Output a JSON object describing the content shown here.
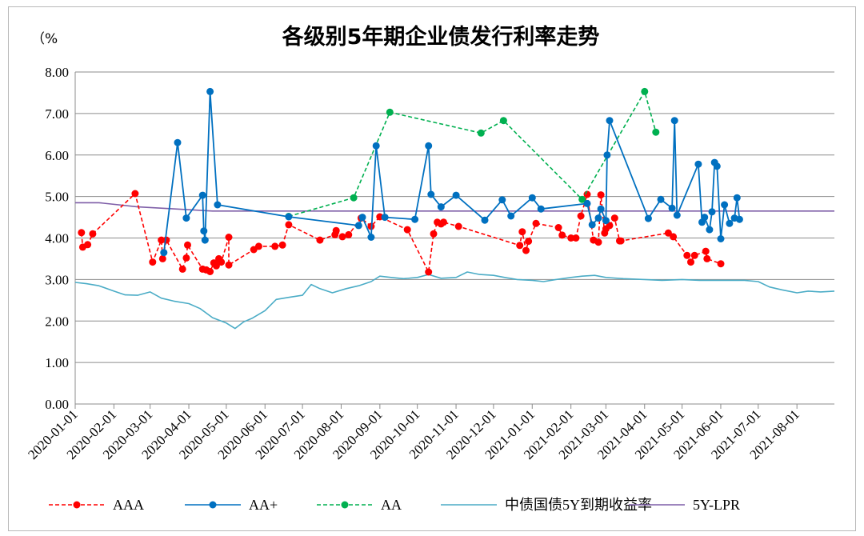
{
  "chart_data": {
    "type": "line",
    "title": "各级别5年期企业债发行利率走势",
    "ylabel": "（%",
    "ylim": [
      0,
      8
    ],
    "yticks": [
      "0.00",
      "1.00",
      "2.00",
      "3.00",
      "4.00",
      "5.00",
      "6.00",
      "7.00",
      "8.00"
    ],
    "xlim": [
      "2020-01-01",
      "2021-08-31"
    ],
    "xticks": [
      "2020-01-01",
      "2020-02-01",
      "2020-03-01",
      "2020-04-01",
      "2020-05-01",
      "2020-06-01",
      "2020-07-01",
      "2020-08-01",
      "2020-09-01",
      "2020-10-01",
      "2020-11-01",
      "2020-12-01",
      "2021-01-01",
      "2021-02-01",
      "2021-03-01",
      "2021-04-01",
      "2021-05-01",
      "2021-06-01",
      "2021-07-01",
      "2021-08-01"
    ],
    "grid": true,
    "legend_position": "bottom",
    "colors": {
      "AAA": "#ff0000",
      "AA+": "#0070c0",
      "AA": "#00b050",
      "cgb": "#4bacc6",
      "lpr": "#7f5fa8"
    },
    "series": [
      {
        "name": "AAA",
        "style": "dashed-markers",
        "points": [
          [
            "2020-01-06",
            4.13
          ],
          [
            "2020-01-07",
            3.78
          ],
          [
            "2020-01-11",
            3.84
          ],
          [
            "2020-01-15",
            4.1
          ],
          [
            "2020-02-18",
            5.07
          ],
          [
            "2020-03-03",
            3.42
          ],
          [
            "2020-03-10",
            3.95
          ],
          [
            "2020-03-11",
            3.5
          ],
          [
            "2020-03-14",
            3.95
          ],
          [
            "2020-03-27",
            3.25
          ],
          [
            "2020-03-30",
            3.52
          ],
          [
            "2020-03-31",
            3.83
          ],
          [
            "2020-04-12",
            3.25
          ],
          [
            "2020-04-15",
            3.23
          ],
          [
            "2020-04-18",
            3.19
          ],
          [
            "2020-04-21",
            3.4
          ],
          [
            "2020-04-23",
            3.33
          ],
          [
            "2020-04-25",
            3.5
          ],
          [
            "2020-04-27",
            3.42
          ],
          [
            "2020-05-03",
            4.02
          ],
          [
            "2020-05-03",
            3.35
          ],
          [
            "2020-05-23",
            3.72
          ],
          [
            "2020-05-27",
            3.8
          ],
          [
            "2020-06-09",
            3.8
          ],
          [
            "2020-06-15",
            3.83
          ],
          [
            "2020-06-20",
            4.32
          ],
          [
            "2020-07-15",
            3.95
          ],
          [
            "2020-07-27",
            4.08
          ],
          [
            "2020-07-28",
            4.18
          ],
          [
            "2020-08-02",
            4.03
          ],
          [
            "2020-08-07",
            4.08
          ],
          [
            "2020-08-17",
            4.48
          ],
          [
            "2020-08-25",
            4.28
          ],
          [
            "2020-09-01",
            4.51
          ],
          [
            "2020-09-23",
            4.2
          ],
          [
            "2020-10-10",
            3.18
          ],
          [
            "2020-10-14",
            4.1
          ],
          [
            "2020-10-17",
            4.38
          ],
          [
            "2020-10-20",
            4.34
          ],
          [
            "2020-10-22",
            4.38
          ],
          [
            "2020-11-03",
            4.28
          ],
          [
            "2020-12-22",
            3.82
          ],
          [
            "2020-12-24",
            4.15
          ],
          [
            "2020-12-27",
            3.7
          ],
          [
            "2020-12-29",
            3.92
          ],
          [
            "2021-01-04",
            4.35
          ],
          [
            "2021-01-22",
            4.25
          ],
          [
            "2021-01-25",
            4.07
          ],
          [
            "2021-02-01",
            4.0
          ],
          [
            "2021-02-05",
            4.0
          ],
          [
            "2021-02-09",
            4.53
          ],
          [
            "2021-02-14",
            5.05
          ],
          [
            "2021-02-19",
            3.95
          ],
          [
            "2021-02-23",
            3.9
          ],
          [
            "2021-02-25",
            5.04
          ],
          [
            "2021-02-28",
            4.12
          ],
          [
            "2021-03-01",
            4.22
          ],
          [
            "2021-03-04",
            4.3
          ],
          [
            "2021-03-08",
            4.48
          ],
          [
            "2021-03-12",
            3.93
          ],
          [
            "2021-03-13",
            3.93
          ],
          [
            "2021-04-20",
            4.12
          ],
          [
            "2021-04-24",
            4.03
          ],
          [
            "2021-05-05",
            3.58
          ],
          [
            "2021-05-08",
            3.42
          ],
          [
            "2021-05-11",
            3.58
          ],
          [
            "2021-05-20",
            3.68
          ],
          [
            "2021-05-21",
            3.5
          ],
          [
            "2021-06-01",
            3.38
          ]
        ]
      },
      {
        "name": "AA+",
        "style": "solid-markers",
        "points": [
          [
            "2020-03-12",
            3.65
          ],
          [
            "2020-03-23",
            6.3
          ],
          [
            "2020-03-30",
            4.48
          ],
          [
            "2020-04-12",
            5.03
          ],
          [
            "2020-04-13",
            4.17
          ],
          [
            "2020-04-14",
            3.95
          ],
          [
            "2020-04-18",
            7.53
          ],
          [
            "2020-04-24",
            4.8
          ],
          [
            "2020-06-20",
            4.51
          ],
          [
            "2020-08-15",
            4.3
          ],
          [
            "2020-08-18",
            4.5
          ],
          [
            "2020-08-25",
            4.02
          ],
          [
            "2020-08-29",
            6.22
          ],
          [
            "2020-09-05",
            4.5
          ],
          [
            "2020-09-29",
            4.45
          ],
          [
            "2020-10-10",
            6.22
          ],
          [
            "2020-10-12",
            5.05
          ],
          [
            "2020-10-20",
            4.75
          ],
          [
            "2020-11-01",
            5.03
          ],
          [
            "2020-11-24",
            4.43
          ],
          [
            "2020-12-08",
            4.92
          ],
          [
            "2020-12-15",
            4.53
          ],
          [
            "2021-01-01",
            4.97
          ],
          [
            "2021-01-08",
            4.7
          ],
          [
            "2021-02-14",
            4.83
          ],
          [
            "2021-02-18",
            4.32
          ],
          [
            "2021-02-23",
            4.48
          ],
          [
            "2021-02-25",
            4.7
          ],
          [
            "2021-03-01",
            4.42
          ],
          [
            "2021-03-02",
            6.0
          ],
          [
            "2021-03-04",
            6.83
          ],
          [
            "2021-04-04",
            4.47
          ],
          [
            "2021-04-14",
            4.93
          ],
          [
            "2021-04-23",
            4.72
          ],
          [
            "2021-04-25",
            6.83
          ],
          [
            "2021-04-27",
            4.55
          ],
          [
            "2021-05-14",
            5.78
          ],
          [
            "2021-05-17",
            4.38
          ],
          [
            "2021-05-19",
            4.5
          ],
          [
            "2021-05-23",
            4.2
          ],
          [
            "2021-05-25",
            4.63
          ],
          [
            "2021-05-27",
            5.82
          ],
          [
            "2021-05-29",
            5.73
          ],
          [
            "2021-06-01",
            3.98
          ],
          [
            "2021-06-04",
            4.8
          ],
          [
            "2021-06-08",
            4.35
          ],
          [
            "2021-06-12",
            4.48
          ],
          [
            "2021-06-14",
            4.97
          ],
          [
            "2021-06-16",
            4.45
          ]
        ]
      },
      {
        "name": "AA",
        "style": "dashed-markers",
        "points": [
          [
            "2020-06-20",
            4.52
          ],
          [
            "2020-08-11",
            4.97
          ],
          [
            "2020-09-09",
            7.03
          ],
          [
            "2020-11-21",
            6.53
          ],
          [
            "2020-12-09",
            6.83
          ],
          [
            "2021-02-10",
            4.93
          ],
          [
            "2021-04-01",
            7.53
          ],
          [
            "2021-04-10",
            6.55
          ]
        ]
      },
      {
        "name": "中债国债5Y到期收益率",
        "style": "solid",
        "points": [
          [
            "2020-01-01",
            2.93
          ],
          [
            "2020-01-10",
            2.9
          ],
          [
            "2020-01-20",
            2.85
          ],
          [
            "2020-02-01",
            2.72
          ],
          [
            "2020-02-10",
            2.63
          ],
          [
            "2020-02-20",
            2.62
          ],
          [
            "2020-03-01",
            2.7
          ],
          [
            "2020-03-10",
            2.55
          ],
          [
            "2020-03-20",
            2.48
          ],
          [
            "2020-04-01",
            2.42
          ],
          [
            "2020-04-10",
            2.3
          ],
          [
            "2020-04-20",
            2.08
          ],
          [
            "2020-05-01",
            1.95
          ],
          [
            "2020-05-08",
            1.82
          ],
          [
            "2020-05-15",
            1.98
          ],
          [
            "2020-05-22",
            2.07
          ],
          [
            "2020-06-01",
            2.25
          ],
          [
            "2020-06-10",
            2.52
          ],
          [
            "2020-06-20",
            2.57
          ],
          [
            "2020-07-01",
            2.62
          ],
          [
            "2020-07-08",
            2.88
          ],
          [
            "2020-07-15",
            2.78
          ],
          [
            "2020-07-25",
            2.68
          ],
          [
            "2020-08-05",
            2.78
          ],
          [
            "2020-08-15",
            2.85
          ],
          [
            "2020-08-25",
            2.95
          ],
          [
            "2020-09-01",
            3.08
          ],
          [
            "2020-09-10",
            3.05
          ],
          [
            "2020-09-20",
            3.02
          ],
          [
            "2020-10-01",
            3.05
          ],
          [
            "2020-10-10",
            3.12
          ],
          [
            "2020-10-20",
            3.03
          ],
          [
            "2020-11-01",
            3.05
          ],
          [
            "2020-11-10",
            3.18
          ],
          [
            "2020-11-20",
            3.12
          ],
          [
            "2020-12-01",
            3.1
          ],
          [
            "2020-12-10",
            3.05
          ],
          [
            "2020-12-20",
            3.0
          ],
          [
            "2021-01-01",
            2.98
          ],
          [
            "2021-01-10",
            2.95
          ],
          [
            "2021-01-20",
            3.0
          ],
          [
            "2021-02-01",
            3.05
          ],
          [
            "2021-02-10",
            3.08
          ],
          [
            "2021-02-20",
            3.1
          ],
          [
            "2021-03-01",
            3.05
          ],
          [
            "2021-03-15",
            3.02
          ],
          [
            "2021-04-01",
            3.0
          ],
          [
            "2021-04-15",
            2.98
          ],
          [
            "2021-05-01",
            3.0
          ],
          [
            "2021-05-15",
            2.98
          ],
          [
            "2021-06-01",
            2.98
          ],
          [
            "2021-06-20",
            2.98
          ],
          [
            "2021-07-01",
            2.95
          ],
          [
            "2021-07-10",
            2.82
          ],
          [
            "2021-07-20",
            2.75
          ],
          [
            "2021-08-01",
            2.68
          ],
          [
            "2021-08-10",
            2.72
          ],
          [
            "2021-08-20",
            2.7
          ],
          [
            "2021-08-31",
            2.72
          ]
        ]
      },
      {
        "name": "5Y-LPR",
        "style": "solid",
        "points": [
          [
            "2020-01-01",
            4.85
          ],
          [
            "2020-01-20",
            4.85
          ],
          [
            "2020-02-20",
            4.75
          ],
          [
            "2020-04-20",
            4.65
          ],
          [
            "2021-08-31",
            4.65
          ]
        ]
      }
    ]
  }
}
